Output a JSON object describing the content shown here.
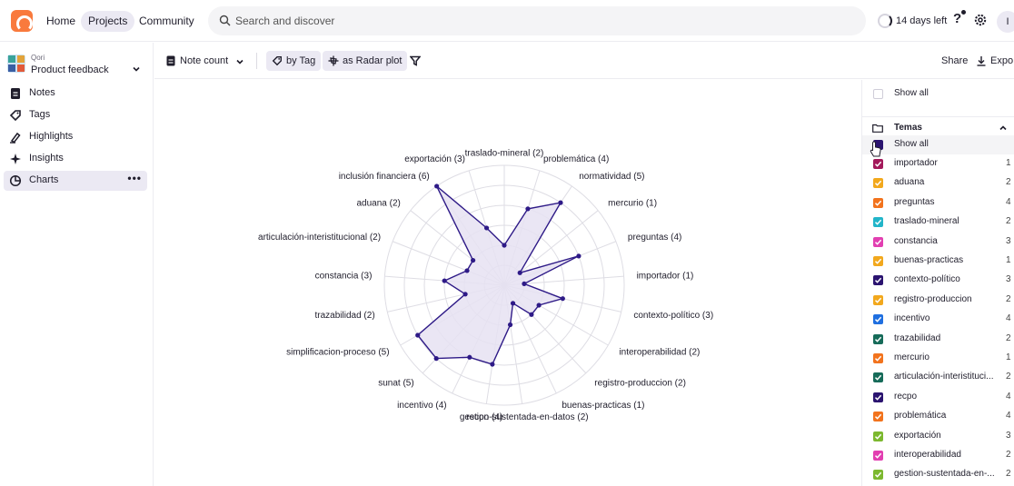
{
  "nav": {
    "home": "Home",
    "projects": "Projects",
    "community": "Community",
    "search_placeholder": "Search and discover",
    "trial": "14 days left",
    "help": "?",
    "avatar_initial": "I"
  },
  "project": {
    "org": "Qori",
    "name": "Product feedback"
  },
  "sidebar": {
    "items": [
      {
        "label": "Notes",
        "icon": "note-icon"
      },
      {
        "label": "Tags",
        "icon": "tag-icon"
      },
      {
        "label": "Highlights",
        "icon": "highlighter-icon"
      },
      {
        "label": "Insights",
        "icon": "sparkle-icon"
      },
      {
        "label": "Charts",
        "icon": "pie-chart-icon",
        "active": true
      }
    ],
    "more": "•••"
  },
  "toolbar": {
    "metric": "Note count",
    "group_by": "by Tag",
    "view": "as Radar plot",
    "share": "Share",
    "export": "Expo"
  },
  "chart_data": {
    "type": "radar",
    "max": 6,
    "rings": 6,
    "color": "#2e1a87",
    "fill": "#e6e2f2",
    "axes": [
      {
        "label": "traslado-mineral (2)",
        "value": 2
      },
      {
        "label": "problemática (4)",
        "value": 4
      },
      {
        "label": "normatividad (5)",
        "value": 5
      },
      {
        "label": "mercurio (1)",
        "value": 1
      },
      {
        "label": "preguntas (4)",
        "value": 4
      },
      {
        "label": "importador (1)",
        "value": 1
      },
      {
        "label": "contexto-político (3)",
        "value": 3
      },
      {
        "label": "interoperabilidad (2)",
        "value": 2
      },
      {
        "label": "registro-produccion (2)",
        "value": 2
      },
      {
        "label": "buenas-practicas (1)",
        "value": 1
      },
      {
        "label": "gestion-sustentada-en-datos (2)",
        "value": 2
      },
      {
        "label": "recpo (4)",
        "value": 4
      },
      {
        "label": "incentivo (4)",
        "value": 4
      },
      {
        "label": "sunat (5)",
        "value": 5
      },
      {
        "label": "simplificacion-proceso (5)",
        "value": 5
      },
      {
        "label": "trazabilidad (2)",
        "value": 2
      },
      {
        "label": "constancia (3)",
        "value": 3
      },
      {
        "label": "articulación-interistitucional (2)",
        "value": 2
      },
      {
        "label": "aduana (2)",
        "value": 2
      },
      {
        "label": "inclusión financiera (6)",
        "value": 6
      },
      {
        "label": "exportación (3)",
        "value": 3
      }
    ]
  },
  "legend": {
    "show_all_top": "Show all",
    "group_name": "Temas",
    "show_all_group": "Show all",
    "items": [
      {
        "name": "importador",
        "count": "1",
        "color": "#a3195b"
      },
      {
        "name": "aduana",
        "count": "2",
        "color": "#f2a81d"
      },
      {
        "name": "preguntas",
        "count": "4",
        "color": "#f2731d"
      },
      {
        "name": "traslado-mineral",
        "count": "2",
        "color": "#22b5c9"
      },
      {
        "name": "constancia",
        "count": "3",
        "color": "#e23fb1"
      },
      {
        "name": "buenas-practicas",
        "count": "1",
        "color": "#f2a81d"
      },
      {
        "name": "contexto-político",
        "count": "3",
        "color": "#2b1470"
      },
      {
        "name": "registro-produccion",
        "count": "2",
        "color": "#f2a81d"
      },
      {
        "name": "incentivo",
        "count": "4",
        "color": "#1f6fe0"
      },
      {
        "name": "trazabilidad",
        "count": "2",
        "color": "#166b59"
      },
      {
        "name": "mercurio",
        "count": "1",
        "color": "#f2731d"
      },
      {
        "name": "articulación-interistituci...",
        "count": "2",
        "color": "#166b59"
      },
      {
        "name": "recpo",
        "count": "4",
        "color": "#2b1470"
      },
      {
        "name": "problemática",
        "count": "4",
        "color": "#f2731d"
      },
      {
        "name": "exportación",
        "count": "3",
        "color": "#7cb82f"
      },
      {
        "name": "interoperabilidad",
        "count": "2",
        "color": "#e23fb1"
      },
      {
        "name": "gestion-sustentada-en-...",
        "count": "2",
        "color": "#7cb82f"
      }
    ]
  }
}
